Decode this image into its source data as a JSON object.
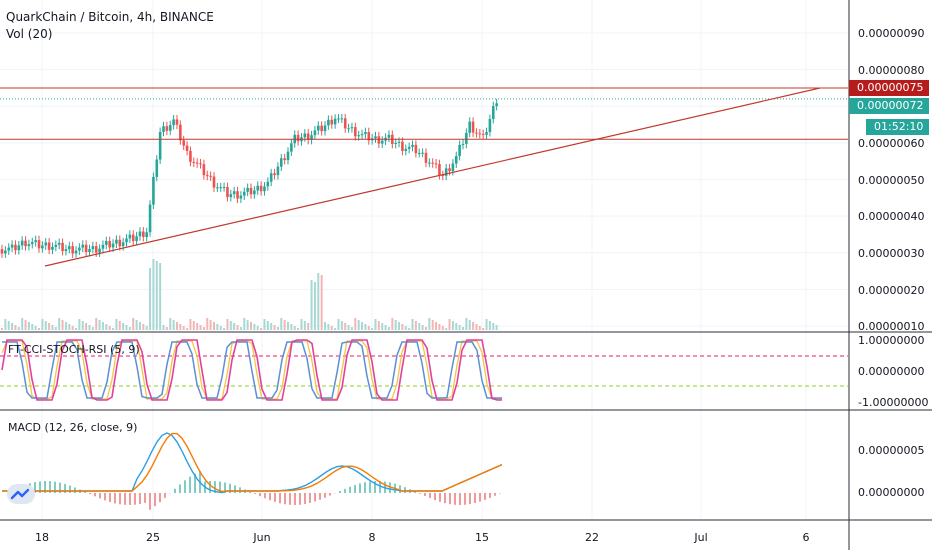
{
  "header": {
    "title": "QuarkChain / Bitcoin, 4h, BINANCE",
    "volume_label": "Vol (20)"
  },
  "price_axis": {
    "labels": [
      "0.00000090",
      "0.00000080",
      "0.00000060",
      "0.00000050",
      "0.00000040",
      "0.00000030",
      "0.00000020",
      "0.00000010"
    ],
    "resistance_tag": "0.00000075",
    "last_price_tag": "0.00000072",
    "countdown_tag": "01:52:10"
  },
  "stoch_panel": {
    "label": "FT-CCI-STOCH-RSI (5, 9)",
    "labels": [
      "1.00000000",
      "0.00000000",
      "-1.00000000"
    ]
  },
  "macd_panel": {
    "label": "MACD (12, 26, close, 9)",
    "labels": [
      "0.00000005",
      "0.00000000"
    ]
  },
  "time_axis": {
    "labels": [
      "18",
      "25",
      "Jun",
      "8",
      "15",
      "22",
      "Jul",
      "6"
    ]
  },
  "colors": {
    "up": "#26a69a",
    "down": "#ef5350",
    "trendline": "#c0392b",
    "resistance_tag_bg": "#b71c1c",
    "last_price_tag_bg": "#26a69a",
    "stoch_line_1": "#e040a0",
    "stoch_line_2": "#f4c542",
    "stoch_line_3": "#5b8fd6",
    "macd_line": "#2e9ee6",
    "signal_line": "#f57c00"
  },
  "chart_data": {
    "type": "candlestick",
    "title": "QuarkChain / Bitcoin, 4h, BINANCE",
    "x": [
      "18",
      "25",
      "Jun",
      "8",
      "15",
      "22",
      "Jul",
      "6"
    ],
    "ylim": [
      1e-07,
      9.5e-07
    ],
    "horizontal_levels": [
      7.5e-07,
      6.1e-07
    ],
    "trendline": {
      "from": [
        2.7e-07,
        "18"
      ],
      "to": [
        7.5e-07,
        "6"
      ]
    },
    "last_price": 7.2e-07,
    "series_close": [
      3.1e-07,
      3.3e-07,
      3.2e-07,
      3.2e-07,
      3.1e-07,
      3.1e-07,
      3.1e-07,
      3.2e-07,
      3.3e-07,
      3.4e-07,
      3.6e-07,
      6.3e-07,
      6.6e-07,
      5.7e-07,
      5.3e-07,
      4.9e-07,
      4.6e-07,
      4.6e-07,
      4.7e-07,
      4.9e-07,
      5.5e-07,
      6.1e-07,
      6.2e-07,
      6.4e-07,
      6.7e-07,
      6.4e-07,
      6.2e-07,
      6.1e-07,
      6.1e-07,
      5.9e-07,
      5.8e-07,
      5.5e-07,
      5.1e-07,
      5.6e-07,
      6.5e-07,
      6.1e-07,
      7.2e-07
    ]
  }
}
